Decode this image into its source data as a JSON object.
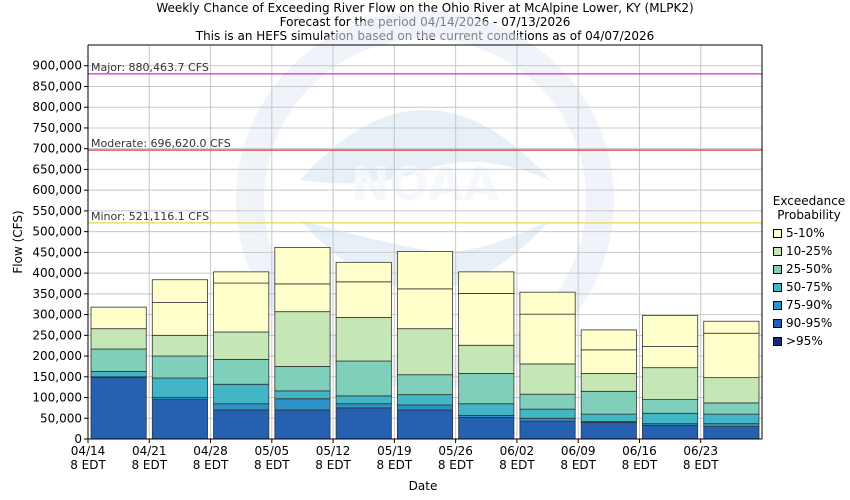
{
  "chart_data": {
    "type": "bar",
    "stacked": true,
    "title": "Weekly Chance of Exceeding River Flow on the Ohio River at McAlpine Lower, KY (MLPK2)",
    "subtitle_lines": [
      "Forecast for the period 04/14/2026 - 07/13/2026",
      "This is an HEFS simulation based on the current conditions as of 04/07/2026"
    ],
    "xlabel": "Date",
    "ylabel": "Flow (CFS)",
    "ylim": [
      0,
      950000
    ],
    "yticks": [
      0,
      50000,
      100000,
      150000,
      200000,
      250000,
      300000,
      350000,
      400000,
      450000,
      500000,
      550000,
      600000,
      650000,
      700000,
      750000,
      800000,
      850000,
      900000
    ],
    "ytick_labels": [
      "0",
      "50,000",
      "100,000",
      "150,000",
      "200,000",
      "250,000",
      "300,000",
      "350,000",
      "400,000",
      "450,000",
      "500,000",
      "550,000",
      "600,000",
      "650,000",
      "700,000",
      "750,000",
      "800,000",
      "850,000",
      "900,000"
    ],
    "xticks": [
      {
        "date": "04/14",
        "tz": "8 EDT"
      },
      {
        "date": "04/21",
        "tz": "8 EDT"
      },
      {
        "date": "04/28",
        "tz": "8 EDT"
      },
      {
        "date": "05/05",
        "tz": "8 EDT"
      },
      {
        "date": "05/12",
        "tz": "8 EDT"
      },
      {
        "date": "05/19",
        "tz": "8 EDT"
      },
      {
        "date": "05/26",
        "tz": "8 EDT"
      },
      {
        "date": "06/02",
        "tz": "8 EDT"
      },
      {
        "date": "06/09",
        "tz": "8 EDT"
      },
      {
        "date": "06/16",
        "tz": "8 EDT"
      },
      {
        "date": "06/23",
        "tz": "8 EDT"
      }
    ],
    "x_end_date": "06/30",
    "weeks": [
      "04/14",
      "04/21",
      "04/28",
      "05/05",
      "05/12",
      "05/19",
      "05/26",
      "06/02",
      "06/09",
      "06/16",
      "06/23"
    ],
    "bands": [
      {
        "name": ">95%",
        "color": "#102a80",
        "values": [
          0,
          0,
          0,
          0,
          0,
          0,
          0,
          0,
          0,
          0,
          0
        ]
      },
      {
        "name": "90-95%",
        "color": "#2660b0",
        "values": [
          148000,
          95000,
          70000,
          70000,
          75000,
          70000,
          52000,
          43000,
          40000,
          33000,
          30000
        ]
      },
      {
        "name": "75-90%",
        "color": "#2f92c6",
        "values": [
          150000,
          100000,
          85000,
          97000,
          85000,
          82000,
          57000,
          50000,
          42000,
          37000,
          37000
        ]
      },
      {
        "name": "50-75%",
        "color": "#43b6c6",
        "values": [
          163000,
          147000,
          132000,
          116000,
          104000,
          107000,
          85000,
          72000,
          60000,
          62000,
          60000
        ]
      },
      {
        "name": "25-50%",
        "color": "#7fcfbb",
        "values": [
          217000,
          200000,
          192000,
          175000,
          188000,
          155000,
          158000,
          108000,
          115000,
          95000,
          87000
        ]
      },
      {
        "name": "10-25%",
        "color": "#c4e7b5",
        "values": [
          266000,
          250000,
          258000,
          307000,
          293000,
          266000,
          226000,
          181000,
          158000,
          172000,
          148000
        ]
      },
      {
        "name": "5-10%",
        "color": "#ffffcc",
        "values": [
          318000,
          329000,
          376000,
          374000,
          379000,
          362000,
          351000,
          301000,
          215000,
          223000,
          255000
        ]
      }
    ],
    "band_tops": [
      317000,
      384000,
      403000,
      462000,
      426000,
      452000,
      403000,
      354000,
      263000,
      298000,
      284000
    ],
    "thresholds": [
      {
        "label": "Major: 880,463.7 CFS",
        "value": 880463.7,
        "color": "#cc33cc"
      },
      {
        "label": "Moderate: 696,620.0 CFS",
        "value": 696620.0,
        "color": "#dd2222"
      },
      {
        "label": "Minor: 521,116.1 CFS",
        "value": 521116.1,
        "color": "#e8d84c"
      }
    ],
    "legend": {
      "title_line1": "Exceedance",
      "title_line2": "Probability",
      "placement": "right",
      "items": [
        {
          "label": "5-10%",
          "color": "#ffffcc"
        },
        {
          "label": "10-25%",
          "color": "#c4e7b5"
        },
        {
          "label": "25-50%",
          "color": "#7fcfbb"
        },
        {
          "label": "50-75%",
          "color": "#43b6c6"
        },
        {
          "label": "75-90%",
          "color": "#2f92c6"
        },
        {
          "label": "90-95%",
          "color": "#2660b0"
        },
        {
          "label": ">95%",
          "color": "#102a80"
        }
      ]
    },
    "grid": true,
    "watermark": "NOAA"
  }
}
